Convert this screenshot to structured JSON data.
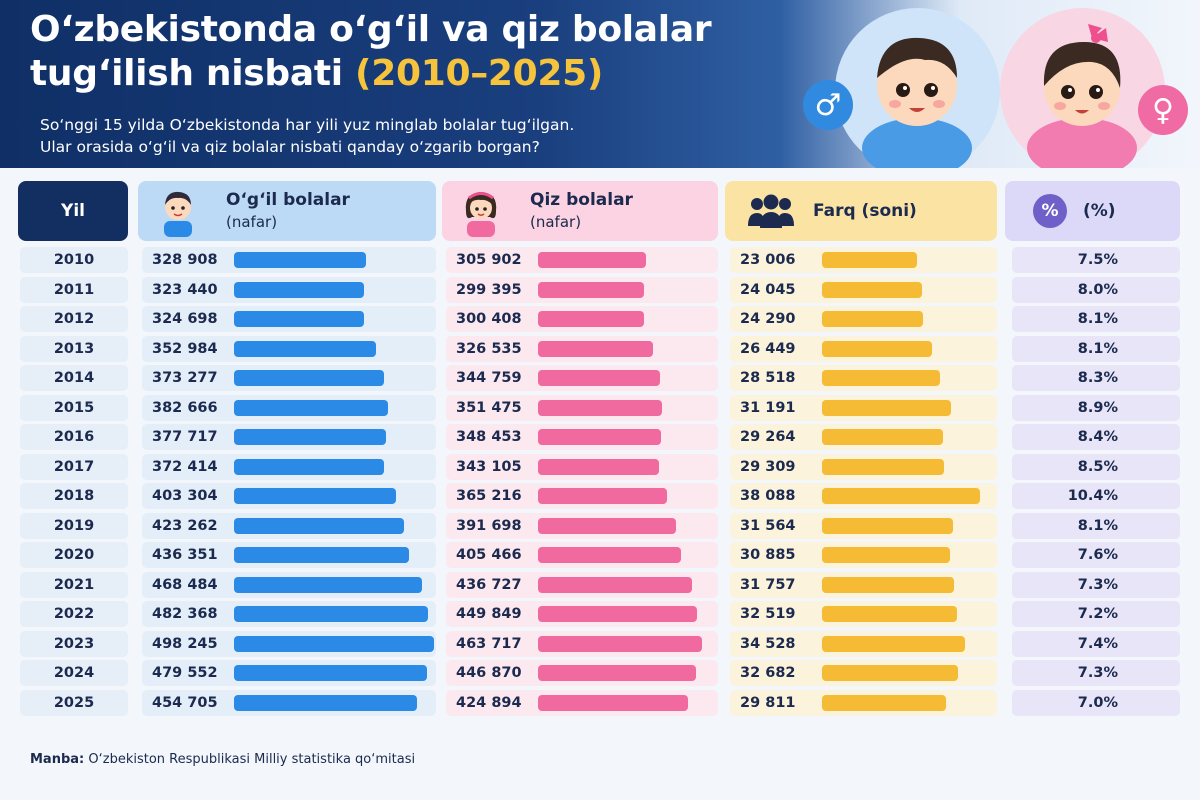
{
  "header": {
    "title_line1": "O‘zbekistonda o‘g‘il va qiz bolalar",
    "title_line2": "tug‘ilish nisbati",
    "title_years": "(2010–2025)",
    "subtitle_line1": "So‘nggi 15 yilda O‘zbekistonda har yili yuz minglab bolalar tug‘ilgan.",
    "subtitle_line2": "Ular orasida o‘g‘il va qiz bolalar nisbati qanday o‘zgarib borgan?",
    "male_symbol": "♂",
    "female_symbol": "♀"
  },
  "columns": {
    "year": "Yil",
    "boys_title": "O‘g‘il bolalar",
    "boys_sub": "(nafar)",
    "girls_title": "Qiz bolalar",
    "girls_sub": "(nafar)",
    "diff_title": "Farq (soni)",
    "pct_symbol": "%",
    "pct_title": "(%)"
  },
  "colors": {
    "boys": "#2b8ae6",
    "girls": "#f06a9f",
    "diff": "#f6bb34",
    "navy": "#132e61"
  },
  "chart_data": {
    "type": "table",
    "title": "O‘zbekistonda o‘g‘il va qiz bolalar tug‘ilish nisbati (2010–2025)",
    "rows": [
      {
        "year": "2010",
        "boys": 328908,
        "boys_label": "328 908",
        "girls": 305902,
        "girls_label": "305 902",
        "diff": 23006,
        "diff_label": "23 006",
        "pct": "7.5%"
      },
      {
        "year": "2011",
        "boys": 323440,
        "boys_label": "323 440",
        "girls": 299395,
        "girls_label": "299 395",
        "diff": 24045,
        "diff_label": "24 045",
        "pct": "8.0%"
      },
      {
        "year": "2012",
        "boys": 324698,
        "boys_label": "324 698",
        "girls": 300408,
        "girls_label": "300 408",
        "diff": 24290,
        "diff_label": "24 290",
        "pct": "8.1%"
      },
      {
        "year": "2013",
        "boys": 352984,
        "boys_label": "352 984",
        "girls": 326535,
        "girls_label": "326 535",
        "diff": 26449,
        "diff_label": "26 449",
        "pct": "8.1%"
      },
      {
        "year": "2014",
        "boys": 373277,
        "boys_label": "373 277",
        "girls": 344759,
        "girls_label": "344 759",
        "diff": 28518,
        "diff_label": "28 518",
        "pct": "8.3%"
      },
      {
        "year": "2015",
        "boys": 382666,
        "boys_label": "382 666",
        "girls": 351475,
        "girls_label": "351 475",
        "diff": 31191,
        "diff_label": "31 191",
        "pct": "8.9%"
      },
      {
        "year": "2016",
        "boys": 377717,
        "boys_label": "377 717",
        "girls": 348453,
        "girls_label": "348 453",
        "diff": 29264,
        "diff_label": "29 264",
        "pct": "8.4%"
      },
      {
        "year": "2017",
        "boys": 372414,
        "boys_label": "372 414",
        "girls": 343105,
        "girls_label": "343 105",
        "diff": 29309,
        "diff_label": "29 309",
        "pct": "8.5%"
      },
      {
        "year": "2018",
        "boys": 403304,
        "boys_label": "403 304",
        "girls": 365216,
        "girls_label": "365 216",
        "diff": 38088,
        "diff_label": "38 088",
        "pct": "10.4%"
      },
      {
        "year": "2019",
        "boys": 423262,
        "boys_label": "423 262",
        "girls": 391698,
        "girls_label": "391 698",
        "diff": 31564,
        "diff_label": "31 564",
        "pct": "8.1%"
      },
      {
        "year": "2020",
        "boys": 436351,
        "boys_label": "436 351",
        "girls": 405466,
        "girls_label": "405 466",
        "diff": 30885,
        "diff_label": "30 885",
        "pct": "7.6%"
      },
      {
        "year": "2021",
        "boys": 468484,
        "boys_label": "468 484",
        "girls": 436727,
        "girls_label": "436 727",
        "diff": 31757,
        "diff_label": "31 757",
        "pct": "7.3%"
      },
      {
        "year": "2022",
        "boys": 482368,
        "boys_label": "482 368",
        "girls": 449849,
        "girls_label": "449 849",
        "diff": 32519,
        "diff_label": "32 519",
        "pct": "7.2%"
      },
      {
        "year": "2023",
        "boys": 498245,
        "boys_label": "498 245",
        "girls": 463717,
        "girls_label": "463 717",
        "diff": 34528,
        "diff_label": "34 528",
        "pct": "7.4%"
      },
      {
        "year": "2024",
        "boys": 479552,
        "boys_label": "479 552",
        "girls": 446870,
        "girls_label": "446 870",
        "diff": 32682,
        "diff_label": "32 682",
        "pct": "7.3%"
      },
      {
        "year": "2025",
        "boys": 454705,
        "boys_label": "454 705",
        "girls": 424894,
        "girls_label": "424 894",
        "diff": 29811,
        "diff_label": "29 811",
        "pct": "7.0%"
      }
    ]
  },
  "footer": {
    "source_label": "Manba:",
    "source_text": "O‘zbekiston Respublikasi Milliy statistika qo‘mitasi"
  }
}
